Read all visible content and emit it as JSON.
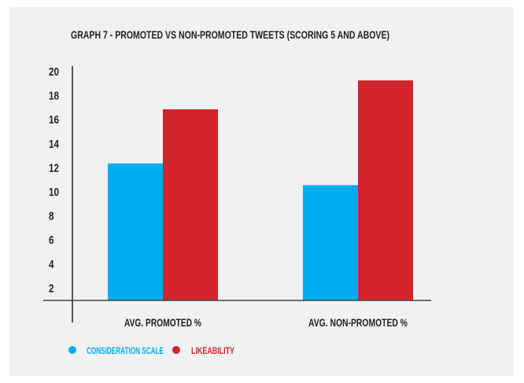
{
  "chart_data": {
    "type": "bar",
    "title": "GRAPH 7 - PROMOTED VS NON-PROMOTED TWEETS (SCORING 5 AND ABOVE)",
    "categories": [
      "AVG. PROMOTED %",
      "AVG. NON-PROMOTED %"
    ],
    "series": [
      {
        "name": "CONSIDERATION SCALE",
        "color": "#00aeef",
        "values": [
          12.3,
          10.5
        ]
      },
      {
        "name": "LIKEABILITY",
        "color": "#d2242b",
        "values": [
          16.8,
          19.2
        ]
      }
    ],
    "yticks": [
      "2",
      "4",
      "6",
      "8",
      "10",
      "12",
      "14",
      "16",
      "18",
      "20"
    ],
    "ylim": [
      0,
      20
    ],
    "grid": false,
    "legend": "bottom-left",
    "xlabel": "",
    "ylabel": ""
  }
}
